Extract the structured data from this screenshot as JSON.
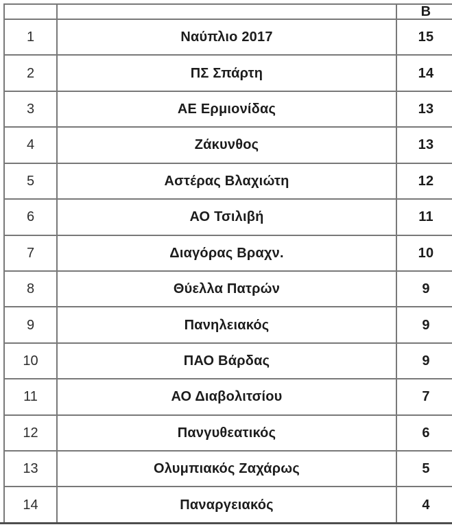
{
  "table": {
    "header": {
      "rank": "",
      "team": "",
      "points": "Β"
    },
    "rows": [
      {
        "rank": "1",
        "team": "Ναύπλιο 2017",
        "points": "15"
      },
      {
        "rank": "2",
        "team": "ΠΣ Σπάρτη",
        "points": "14"
      },
      {
        "rank": "3",
        "team": "ΑΕ Ερμιονίδας",
        "points": "13"
      },
      {
        "rank": "4",
        "team": "Ζάκυνθος",
        "points": "13"
      },
      {
        "rank": "5",
        "team": "Αστέρας Βλαχιώτη",
        "points": "12"
      },
      {
        "rank": "6",
        "team": "ΑΟ Τσιλιβή",
        "points": "11"
      },
      {
        "rank": "7",
        "team": "Διαγόρας Βραχν.",
        "points": "10"
      },
      {
        "rank": "8",
        "team": "Θύελλα Πατρών",
        "points": "9"
      },
      {
        "rank": "9",
        "team": "Πανηλειακός",
        "points": "9"
      },
      {
        "rank": "10",
        "team": "ΠΑΟ Βάρδας",
        "points": "9"
      },
      {
        "rank": "11",
        "team": "ΑΟ Διαβολιτσίου",
        "points": "7"
      },
      {
        "rank": "12",
        "team": "Πανγυθεατικός",
        "points": "6"
      },
      {
        "rank": "13",
        "team": "Ολυμπιακός Ζαχάρως",
        "points": "5"
      },
      {
        "rank": "14",
        "team": "Παναργειακός",
        "points": "4"
      }
    ]
  },
  "chart_data": {
    "type": "table",
    "title": "",
    "columns": [
      "",
      "",
      "Β"
    ],
    "categories": [
      "Ναύπλιο 2017",
      "ΠΣ Σπάρτη",
      "ΑΕ Ερμιονίδας",
      "Ζάκυνθος",
      "Αστέρας Βλαχιώτη",
      "ΑΟ Τσιλιβή",
      "Διαγόρας Βραχν.",
      "Θύελλα Πατρών",
      "Πανηλειακός",
      "ΠΑΟ Βάρδας",
      "ΑΟ Διαβολιτσίου",
      "Πανγυθεατικός",
      "Ολυμπιακός Ζαχάρως",
      "Παναργειακός"
    ],
    "ranks": [
      1,
      2,
      3,
      4,
      5,
      6,
      7,
      8,
      9,
      10,
      11,
      12,
      13,
      14
    ],
    "values": [
      15,
      14,
      13,
      13,
      12,
      11,
      10,
      9,
      9,
      9,
      7,
      6,
      5,
      4
    ]
  },
  "colors": {
    "grid": "#787878",
    "bottom_bar": "#4d4d4d",
    "text": "#1c1c1c"
  }
}
